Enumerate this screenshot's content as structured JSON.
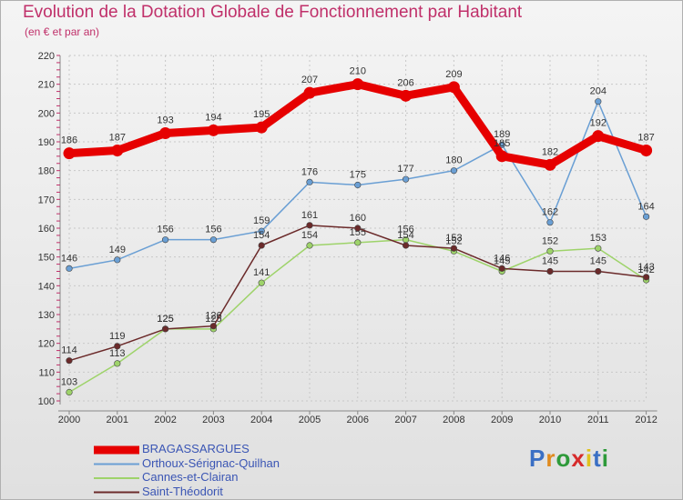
{
  "title": "Evolution de la Dotation Globale de Fonctionnement par Habitant",
  "subtitle": "(en € et par an)",
  "logo": {
    "letters": [
      "P",
      "r",
      "o",
      "x",
      "i",
      "t",
      "i"
    ],
    "colors": [
      "#3a6fc4",
      "#e08a1e",
      "#2e9a3a",
      "#d62b2b",
      "#e0c21e",
      "#3a6fc4",
      "#2e9a3a"
    ]
  },
  "chart_data": {
    "type": "line",
    "title": "Evolution de la Dotation Globale de Fonctionnement par Habitant",
    "ylabel": "(en € et par an)",
    "xlabel": "",
    "ylim": [
      100,
      220
    ],
    "yticks": [
      100,
      110,
      120,
      130,
      140,
      150,
      160,
      170,
      180,
      190,
      200,
      210,
      220
    ],
    "categories": [
      "2000",
      "2001",
      "2002",
      "2003",
      "2004",
      "2005",
      "2006",
      "2007",
      "2008",
      "2009",
      "2010",
      "2011",
      "2012"
    ],
    "series": [
      {
        "name": "BRAGASSARGUES",
        "color": "#e60000",
        "values": [
          186,
          187,
          193,
          194,
          195,
          207,
          210,
          206,
          209,
          185,
          182,
          192,
          187
        ]
      },
      {
        "name": "Orthoux-Sérignac-Quilhan",
        "color": "#6a9fd4",
        "values": [
          146,
          149,
          156,
          156,
          159,
          176,
          175,
          177,
          180,
          189,
          162,
          204,
          164
        ]
      },
      {
        "name": "Cannes-et-Clairan",
        "color": "#9ed36a",
        "values": [
          103,
          113,
          125,
          125,
          141,
          154,
          155,
          156,
          152,
          145,
          152,
          153,
          142
        ]
      },
      {
        "name": "Saint-Théodorit",
        "color": "#6b2a2a",
        "values": [
          114,
          119,
          125,
          126,
          154,
          161,
          160,
          154,
          153,
          146,
          145,
          145,
          143
        ]
      }
    ]
  }
}
